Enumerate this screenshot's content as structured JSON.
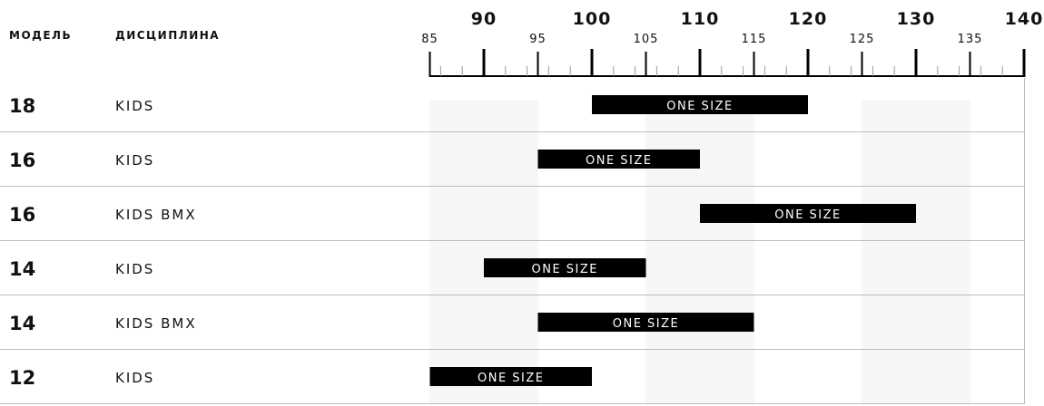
{
  "header": {
    "model_label": "МОДЕЛЬ",
    "discipline_label": "ДИСЦИПЛИНА"
  },
  "chart_data": {
    "type": "bar",
    "subtype": "range",
    "x_axis": {
      "min": 85,
      "max": 140,
      "major_ticks": [
        90,
        100,
        110,
        120,
        130,
        140
      ],
      "minor_ticks": [
        85,
        95,
        105,
        115,
        125,
        135
      ]
    },
    "rows": [
      {
        "model": "18",
        "discipline": "KIDS",
        "size": "ONE SIZE",
        "from": 100,
        "to": 120
      },
      {
        "model": "16",
        "discipline": "KIDS",
        "size": "ONE SIZE",
        "from": 95,
        "to": 110
      },
      {
        "model": "16",
        "discipline": "KIDS BMX",
        "size": "ONE SIZE",
        "from": 110,
        "to": 130
      },
      {
        "model": "14",
        "discipline": "KIDS",
        "size": "ONE SIZE",
        "from": 90,
        "to": 105
      },
      {
        "model": "14",
        "discipline": "KIDS BMX",
        "size": "ONE SIZE",
        "from": 95,
        "to": 115
      },
      {
        "model": "12",
        "discipline": "KIDS",
        "size": "ONE SIZE",
        "from": 85,
        "to": 100
      }
    ],
    "colors": {
      "bar": "#000000",
      "bar_text": "#ffffff",
      "band": "#f6f6f6",
      "divider": "#bdbdbd"
    }
  }
}
